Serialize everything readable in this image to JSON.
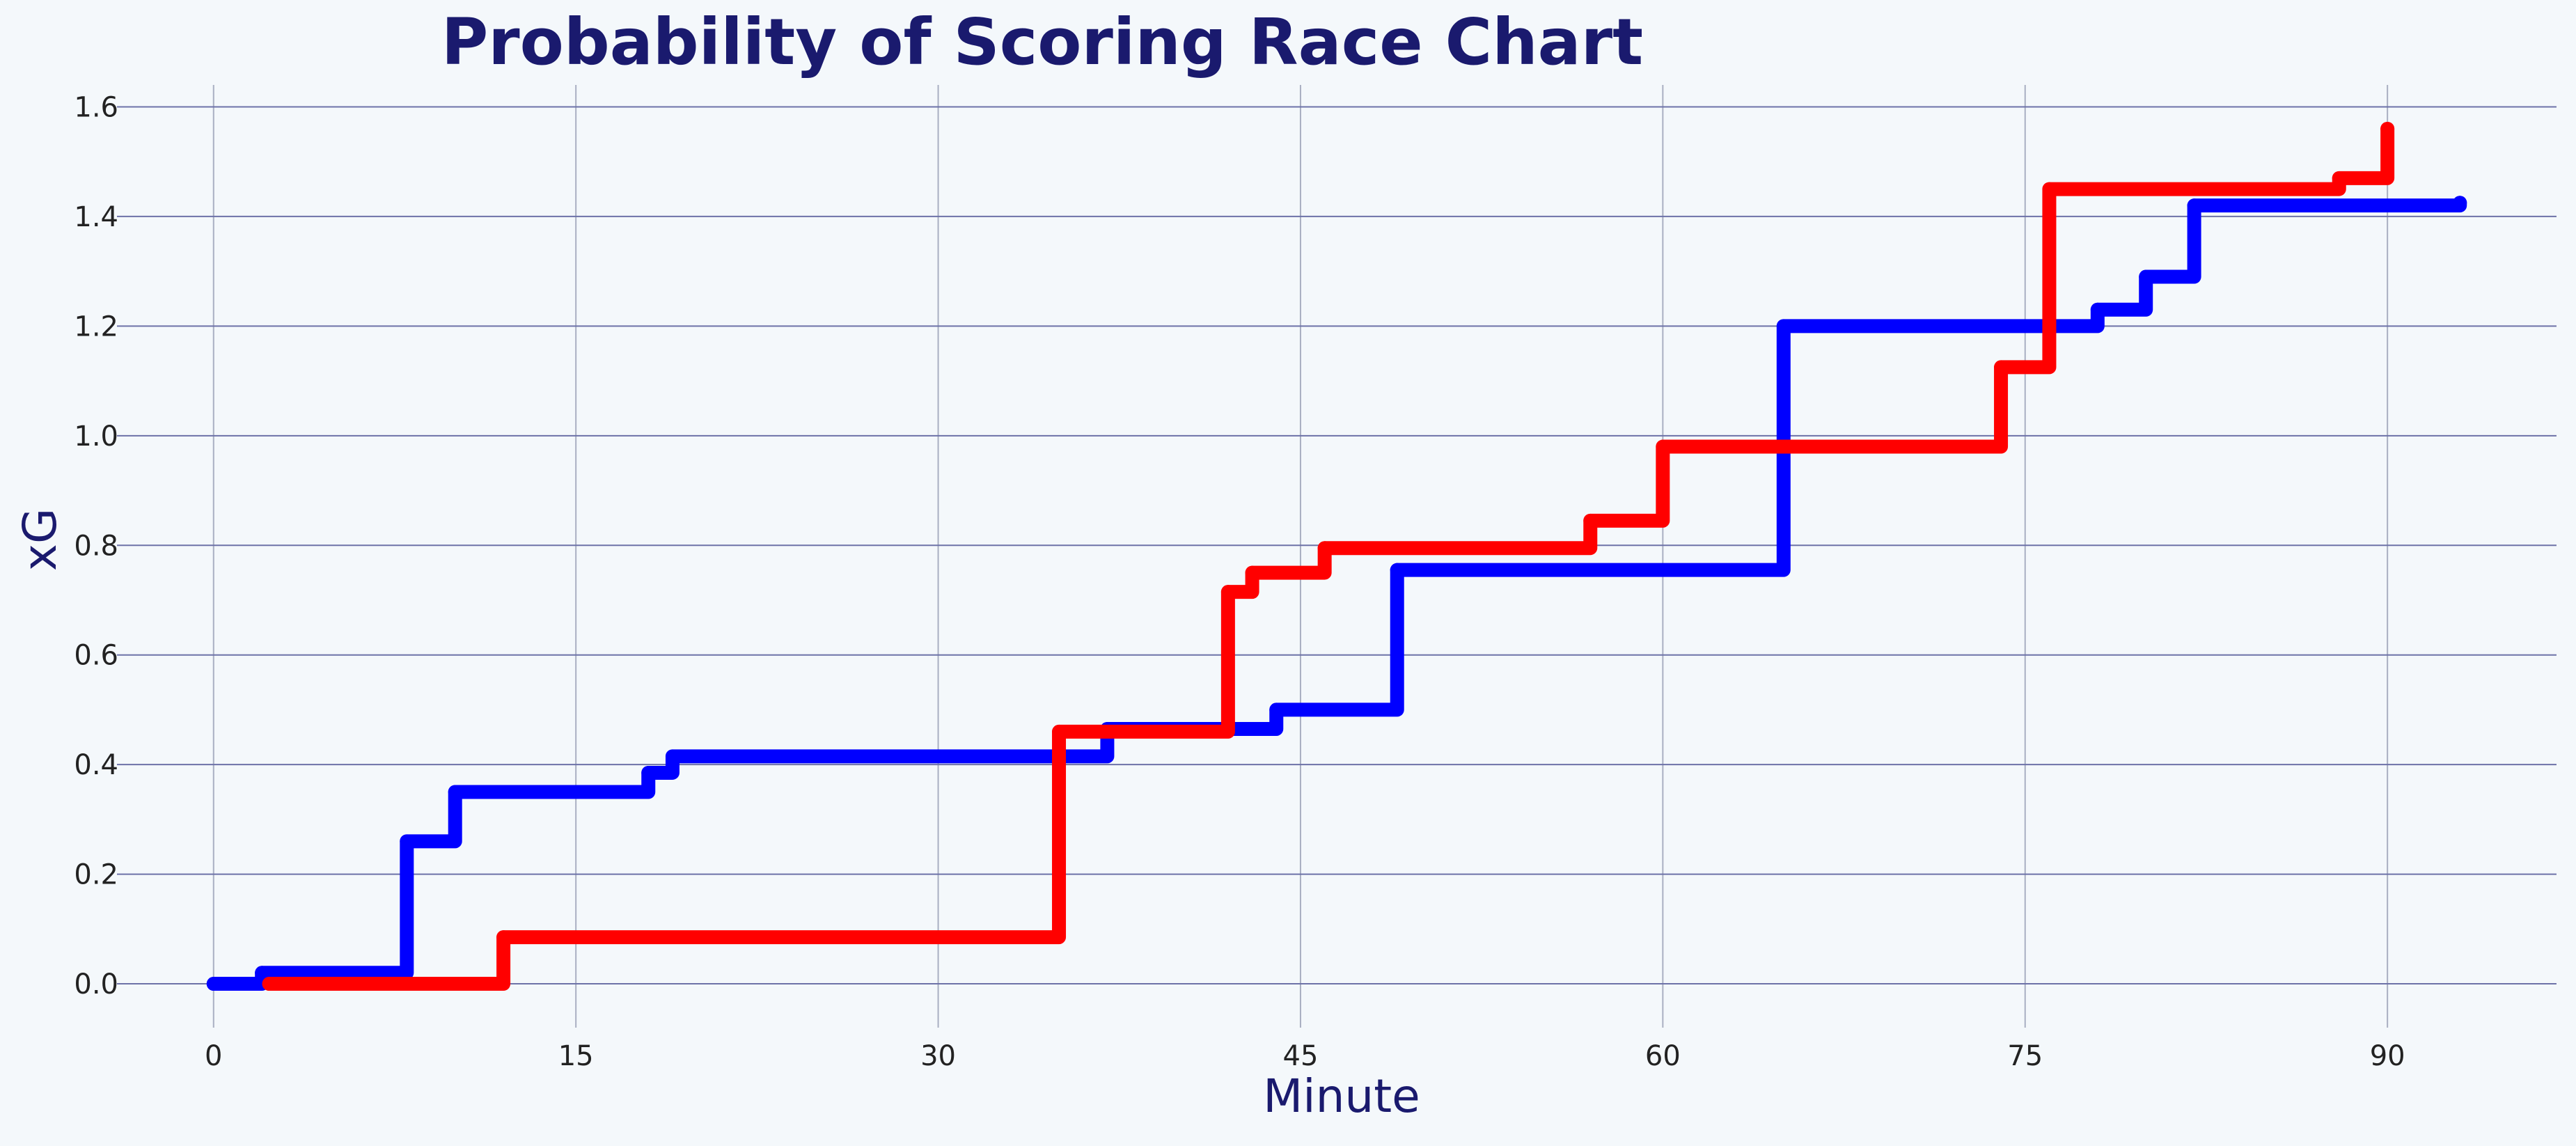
{
  "chart_data": {
    "type": "line",
    "step": true,
    "title": "Probability of Scoring Race Chart",
    "xlabel": "Minute",
    "ylabel": "xG",
    "xlim": [
      -4,
      97
    ],
    "ylim": [
      -0.08,
      1.64
    ],
    "xticks": [
      0,
      15,
      30,
      45,
      60,
      75,
      90
    ],
    "xtick_labels": [
      "0",
      "15",
      "30",
      "45",
      "60",
      "75",
      "90"
    ],
    "yticks": [
      0.0,
      0.2,
      0.4,
      0.6,
      0.8,
      1.0,
      1.2,
      1.4,
      1.6
    ],
    "ytick_labels": [
      "0.0",
      "0.2",
      "0.4",
      "0.6",
      "0.8",
      "1.0",
      "1.2",
      "1.4",
      "1.6"
    ],
    "grid": true,
    "background": "#f4f8fb",
    "title_color": "#1a1a6e",
    "series": [
      {
        "color": "#0000ff",
        "x": [
          0,
          2,
          8,
          10,
          18,
          19,
          37,
          44,
          49,
          65,
          78,
          80,
          82,
          93
        ],
        "y": [
          0,
          0.02,
          0.26,
          0.35,
          0.385,
          0.415,
          0.465,
          0.5,
          0.755,
          1.2,
          1.23,
          1.29,
          1.42,
          1.425
        ]
      },
      {
        "color": "#ff0000",
        "x": [
          2.3,
          12,
          35,
          42,
          43,
          46,
          57,
          60,
          74,
          76,
          88,
          90
        ],
        "y": [
          0,
          0.085,
          0.46,
          0.715,
          0.75,
          0.795,
          0.845,
          0.98,
          1.125,
          1.45,
          1.47,
          1.56
        ]
      }
    ]
  }
}
